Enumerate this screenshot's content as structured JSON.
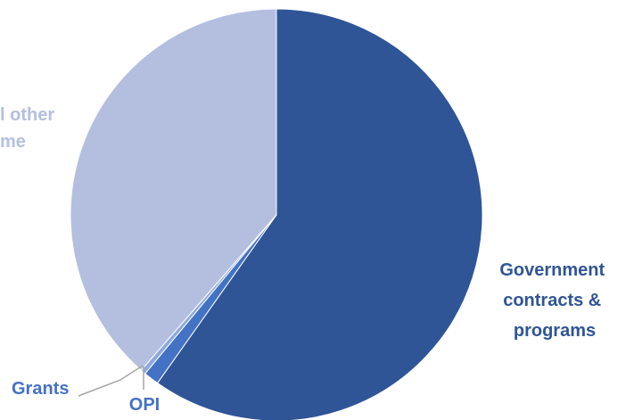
{
  "chart_data": {
    "type": "pie",
    "title": "",
    "slices": [
      {
        "label": "Government contracts & programs",
        "label_lines": [
          "Government",
          "contracts &",
          "programs"
        ],
        "value": 59.8,
        "color": "#2f5597"
      },
      {
        "label": "OPI",
        "label_lines": [
          "OPI"
        ],
        "value": 1.2,
        "color": "#4472c4"
      },
      {
        "label": "Grants",
        "label_lines": [
          "Grants"
        ],
        "value": 0.4,
        "color": "#8ea9db"
      },
      {
        "label": "and other income",
        "label_lines": [
          "l other",
          "me"
        ],
        "value": 38.6,
        "color": "#b4bfe0"
      }
    ],
    "label_colors": {
      "dark": "#2f5597",
      "medium": "#4472c4",
      "light": "#b4bfe0"
    },
    "grid": false,
    "legend": "none"
  }
}
